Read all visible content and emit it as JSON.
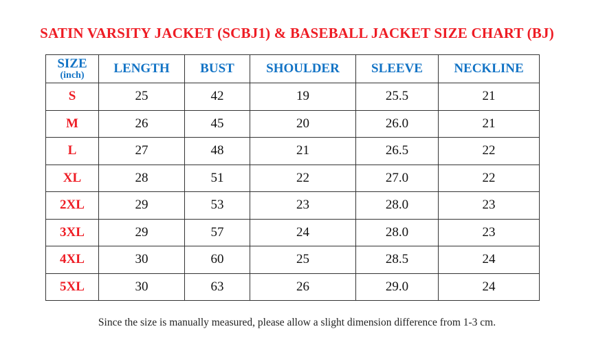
{
  "title": "SATIN VARSITY JACKET (SCBJ1) & BASEBALL JACKET SIZE CHART (BJ)",
  "table": {
    "size_header": "SIZE",
    "size_unit": "(inch)",
    "columns": [
      "LENGTH",
      "BUST",
      "SHOULDER",
      "SLEEVE",
      "NECKLINE"
    ],
    "rows": [
      {
        "size": "S",
        "values": [
          "25",
          "42",
          "19",
          "25.5",
          "21"
        ]
      },
      {
        "size": "M",
        "values": [
          "26",
          "45",
          "20",
          "26.0",
          "21"
        ]
      },
      {
        "size": "L",
        "values": [
          "27",
          "48",
          "21",
          "26.5",
          "22"
        ]
      },
      {
        "size": "XL",
        "values": [
          "28",
          "51",
          "22",
          "27.0",
          "22"
        ]
      },
      {
        "size": "2XL",
        "values": [
          "29",
          "53",
          "23",
          "28.0",
          "23"
        ]
      },
      {
        "size": "3XL",
        "values": [
          "29",
          "57",
          "24",
          "28.0",
          "23"
        ]
      },
      {
        "size": "4XL",
        "values": [
          "30",
          "60",
          "25",
          "28.5",
          "24"
        ]
      },
      {
        "size": "5XL",
        "values": [
          "30",
          "63",
          "26",
          "29.0",
          "24"
        ]
      }
    ]
  },
  "note": "Since the size is manually measured, please allow a slight dimension difference from 1-3 cm.",
  "colors": {
    "title": "#ee1c24",
    "header": "#1273c5",
    "size_label": "#ee1c24"
  }
}
